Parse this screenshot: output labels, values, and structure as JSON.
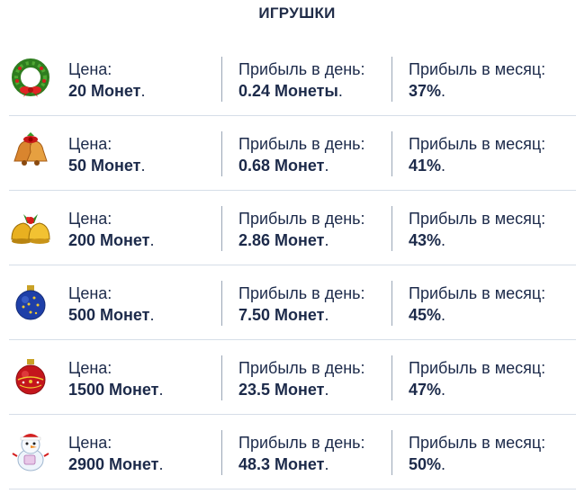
{
  "title": "ИГРУШКИ",
  "labels": {
    "price": "Цена:",
    "profit_day": "Прибыль в день:",
    "profit_month": "Прибыль в месяц:"
  },
  "items": [
    {
      "icon": "wreath-icon",
      "price": "20 Монет",
      "day": "0.24 Монеты",
      "month": "37%"
    },
    {
      "icon": "bells-icon",
      "price": "50 Монет",
      "day": "0.68 Монет",
      "month": "41%"
    },
    {
      "icon": "golden-bells-icon",
      "price": "200 Монет",
      "day": "2.86 Монет",
      "month": "43%"
    },
    {
      "icon": "blue-ornament-icon",
      "price": "500 Монет",
      "day": "7.50 Монет",
      "month": "45%"
    },
    {
      "icon": "red-ornament-icon",
      "price": "1500 Монет",
      "day": "23.5 Монет",
      "month": "47%"
    },
    {
      "icon": "snowman-icon",
      "price": "2900 Монет",
      "day": "48.3 Монет",
      "month": "50%"
    }
  ]
}
